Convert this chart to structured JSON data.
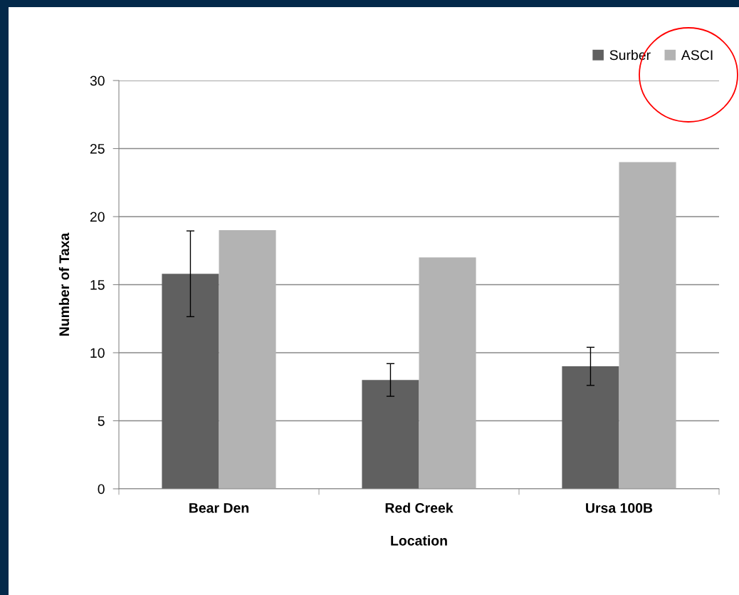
{
  "chart_data": {
    "type": "bar",
    "xlabel": "Location",
    "ylabel": "Number of Taxa",
    "categories": [
      "Bear Den",
      "Red Creek",
      "Ursa 100B"
    ],
    "series": [
      {
        "name": "Surber",
        "color": "#606060",
        "values": [
          15.8,
          8.0,
          9.0
        ],
        "errors": [
          3.15,
          1.2,
          1.4
        ]
      },
      {
        "name": "ASCI",
        "color": "#b3b3b3",
        "values": [
          19.0,
          17.0,
          24.0
        ]
      }
    ],
    "ylim": [
      0,
      30
    ],
    "yticks": [
      0,
      5,
      10,
      15,
      20,
      25,
      30
    ],
    "grid": "y",
    "legend": "top right"
  }
}
